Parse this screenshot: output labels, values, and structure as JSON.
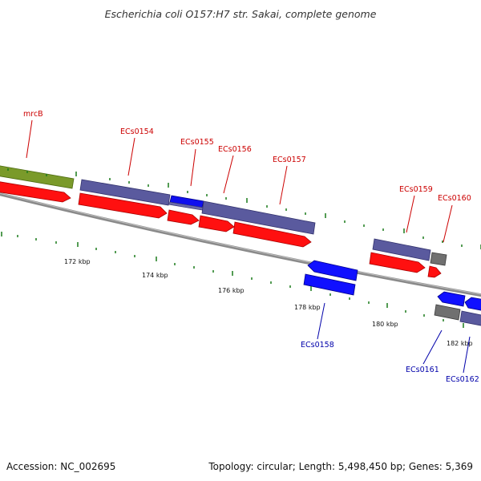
{
  "title": "Escherichia coli O157:H7 str. Sakai, complete genome",
  "accession": "Accession: NC_002695",
  "summary": "Topology: circular; Length: 5,498,450 bp; Genes: 5,369",
  "colors": {
    "forward_label": "#cc0000",
    "reverse_label": "#0000aa",
    "cds_red": "#ff0000",
    "gene_purple": "#5a5aa0",
    "gene_olive": "#6b8e23",
    "gene_blue": "#0000ff",
    "gene_gray": "#707070",
    "backbone": "#888888",
    "tick": "#117711"
  },
  "scale_labels": [
    {
      "text": "172 kbp"
    },
    {
      "text": "174 kbp"
    },
    {
      "text": "176 kbp"
    },
    {
      "text": "178 kbp"
    },
    {
      "text": "180 kbp"
    },
    {
      "text": "182 kbp"
    }
  ],
  "gene_labels": [
    {
      "text": "mrcB",
      "strand": "forward"
    },
    {
      "text": "ECs0154",
      "strand": "forward"
    },
    {
      "text": "ECs0155",
      "strand": "forward"
    },
    {
      "text": "ECs0156",
      "strand": "forward"
    },
    {
      "text": "ECs0157",
      "strand": "forward"
    },
    {
      "text": "ECs0159",
      "strand": "forward"
    },
    {
      "text": "ECs0160",
      "strand": "forward"
    },
    {
      "text": "ECs0158",
      "strand": "reverse"
    },
    {
      "text": "ECs0161",
      "strand": "reverse"
    },
    {
      "text": "ECs0162",
      "strand": "reverse"
    }
  ]
}
